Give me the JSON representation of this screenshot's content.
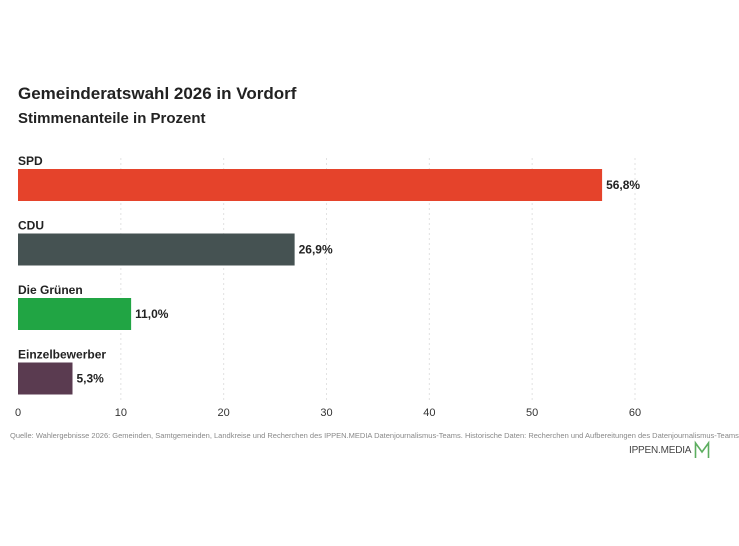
{
  "title": "Gemeinderatswahl 2026 in Vordorf",
  "subtitle": "Stimmenanteile in Prozent",
  "source": "Quelle: Wahlergebnisse 2026: Gemeinden, Samtgemeinden, Landkreise und Recherchen des IPPEN.MEDIA Datenjournalismus-Teams. Historische Daten: Recherchen und Aufbereitungen des Datenjournalismus-Teams",
  "logo": {
    "text": "IPPEN.MEDIA",
    "icon": "ippen-media-m-icon",
    "color": "#5cae5f"
  },
  "chart_data": {
    "type": "bar",
    "orientation": "horizontal",
    "categories": [
      "SPD",
      "CDU",
      "Die Grünen",
      "Einzelbewerber"
    ],
    "values": [
      56.8,
      26.9,
      11.0,
      5.3
    ],
    "value_labels": [
      "56,8%",
      "26,9%",
      "11,0%",
      "5,3%"
    ],
    "colors": [
      "#e5432b",
      "#455252",
      "#21a544",
      "#5a3b50"
    ],
    "xlim": [
      0,
      60
    ],
    "xticks": [
      0,
      10,
      20,
      30,
      40,
      50,
      60
    ],
    "grid": true,
    "legend": "none"
  }
}
